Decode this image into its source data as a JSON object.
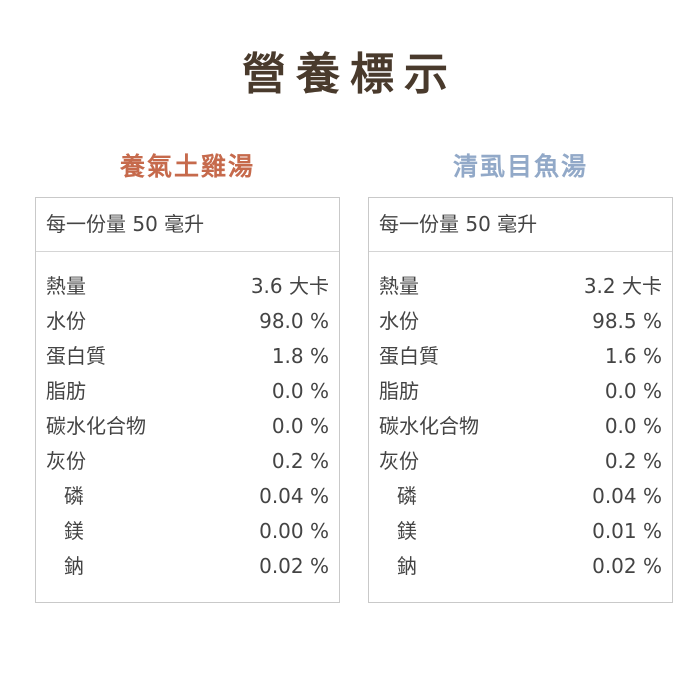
{
  "page": {
    "title": "營養標示",
    "title_color": "#493a2c",
    "background": "#ffffff",
    "border_color": "#c9c9c9",
    "body_text_color": "#444444"
  },
  "products": [
    {
      "name": "養氣土雞湯",
      "name_color": "#c66a4c",
      "serving": "每一份量 50 毫升",
      "rows": [
        {
          "label": "熱量",
          "value": "3.6 大卡"
        },
        {
          "label": "水份",
          "value": "98.0 %"
        },
        {
          "label": "蛋白質",
          "value": "1.8 %"
        },
        {
          "label": "脂肪",
          "value": "0.0 %"
        },
        {
          "label": "碳水化合物",
          "value": "0.0 %"
        },
        {
          "label": "灰份",
          "value": "0.2 %"
        },
        {
          "label": "磷",
          "value": "0.04 %"
        },
        {
          "label": "鎂",
          "value": "0.00 %"
        },
        {
          "label": "鈉",
          "value": "0.02 %"
        }
      ]
    },
    {
      "name": "清虱目魚湯",
      "name_color": "#92a9c8",
      "serving": "每一份量 50 毫升",
      "rows": [
        {
          "label": "熱量",
          "value": "3.2 大卡"
        },
        {
          "label": "水份",
          "value": "98.5 %"
        },
        {
          "label": "蛋白質",
          "value": "1.6 %"
        },
        {
          "label": "脂肪",
          "value": "0.0 %"
        },
        {
          "label": "碳水化合物",
          "value": "0.0 %"
        },
        {
          "label": "灰份",
          "value": "0.2 %"
        },
        {
          "label": "磷",
          "value": "0.04 %"
        },
        {
          "label": "鎂",
          "value": "0.01 %"
        },
        {
          "label": "鈉",
          "value": "0.02 %"
        }
      ]
    }
  ]
}
